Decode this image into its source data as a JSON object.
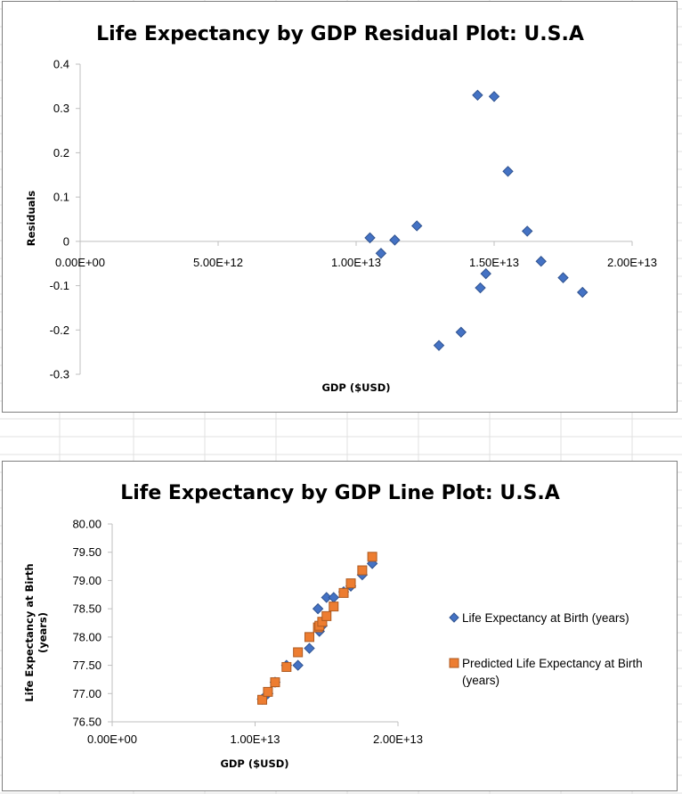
{
  "chart_data": [
    {
      "type": "scatter",
      "title": "Life Expectancy by GDP Residual Plot: U.S.A",
      "xlabel": "GDP ($USD)",
      "ylabel": "Residuals",
      "xlim": [
        0,
        20000000000000.0
      ],
      "ylim": [
        -0.3,
        0.4
      ],
      "x_ticks": [
        "0.00E+00",
        "5.00E+12",
        "1.00E+13",
        "1.50E+13",
        "2.00E+13"
      ],
      "y_ticks": [
        "0.4",
        "0.3",
        "0.2",
        "0.1",
        "0",
        "-0.1",
        "-0.2",
        "-0.3"
      ],
      "series": [
        {
          "marker": "diamond",
          "color": "#4472c4",
          "points": [
            [
              10500000000000.0,
              0.008
            ],
            [
              10900000000000.0,
              -0.027
            ],
            [
              11400000000000.0,
              0.003
            ],
            [
              12200000000000.0,
              0.035
            ],
            [
              13000000000000.0,
              -0.235
            ],
            [
              13800000000000.0,
              -0.205
            ],
            [
              14400000000000.0,
              0.33
            ],
            [
              14500000000000.0,
              -0.105
            ],
            [
              14700000000000.0,
              -0.073
            ],
            [
              15000000000000.0,
              0.327
            ],
            [
              15500000000000.0,
              0.158
            ],
            [
              16200000000000.0,
              0.023
            ],
            [
              16700000000000.0,
              -0.045
            ],
            [
              17500000000000.0,
              -0.082
            ],
            [
              18200000000000.0,
              -0.115
            ]
          ]
        }
      ]
    },
    {
      "type": "scatter",
      "title": "Life Expectancy by GDP Line Plot: U.S.A",
      "xlabel": "GDP ($USD)",
      "ylabel": "Life Expectancy at Birth (years)",
      "xlim": [
        0,
        20000000000000.0
      ],
      "ylim": [
        76.5,
        80.0
      ],
      "x_ticks": [
        "0.00E+00",
        "1.00E+13",
        "2.00E+13"
      ],
      "y_ticks": [
        "80.00",
        "79.50",
        "79.00",
        "78.50",
        "78.00",
        "77.50",
        "77.00",
        "76.50"
      ],
      "legend_position": "right",
      "series": [
        {
          "name": "Life Expectancy at Birth (years)",
          "marker": "diamond",
          "color": "#4472c4",
          "points": [
            [
              10500000000000.0,
              76.9
            ],
            [
              10900000000000.0,
              77.0
            ],
            [
              11400000000000.0,
              77.2
            ],
            [
              12200000000000.0,
              77.5
            ],
            [
              13000000000000.0,
              77.5
            ],
            [
              13800000000000.0,
              77.8
            ],
            [
              14400000000000.0,
              78.5
            ],
            [
              14500000000000.0,
              78.1
            ],
            [
              14700000000000.0,
              78.2
            ],
            [
              15000000000000.0,
              78.7
            ],
            [
              15500000000000.0,
              78.7
            ],
            [
              16200000000000.0,
              78.8
            ],
            [
              16700000000000.0,
              78.9
            ],
            [
              17500000000000.0,
              79.1
            ],
            [
              18200000000000.0,
              79.3
            ]
          ]
        },
        {
          "name": "Predicted Life Expectancy at Birth (years)",
          "marker": "square",
          "color": "#ed7d31",
          "points": [
            [
              10500000000000.0,
              76.89
            ],
            [
              10900000000000.0,
              77.03
            ],
            [
              11400000000000.0,
              77.2
            ],
            [
              12200000000000.0,
              77.47
            ],
            [
              13000000000000.0,
              77.73
            ],
            [
              13800000000000.0,
              78.0
            ],
            [
              14400000000000.0,
              78.17
            ],
            [
              14500000000000.0,
              78.2
            ],
            [
              14700000000000.0,
              78.27
            ],
            [
              15000000000000.0,
              78.37
            ],
            [
              15500000000000.0,
              78.54
            ],
            [
              16200000000000.0,
              78.78
            ],
            [
              16700000000000.0,
              78.95
            ],
            [
              17500000000000.0,
              79.18
            ],
            [
              18200000000000.0,
              79.42
            ]
          ]
        }
      ]
    }
  ]
}
